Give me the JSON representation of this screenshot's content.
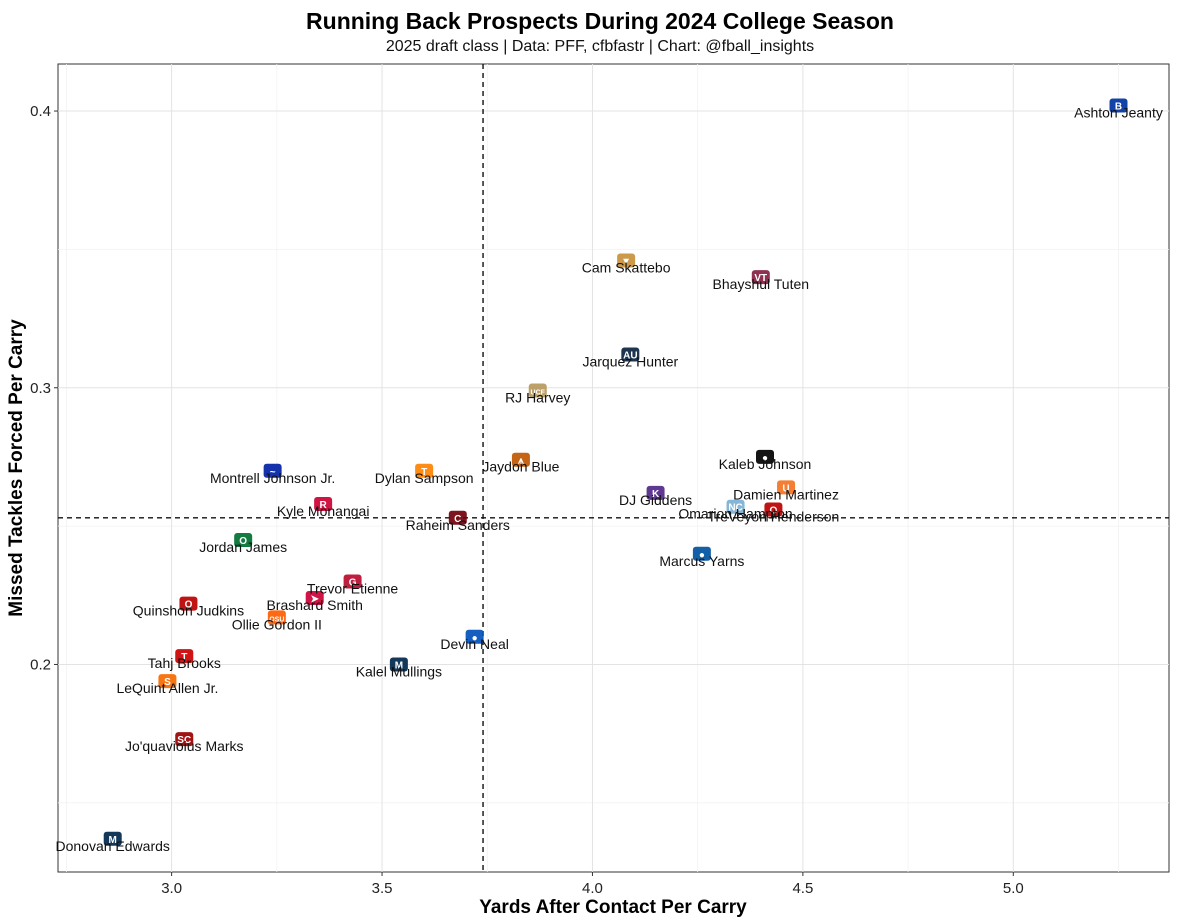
{
  "chart_data": {
    "type": "scatter",
    "title": "Running Back Prospects During 2024 College Season",
    "subtitle": "2025 draft class | Data: PFF, cfbfastr | Chart: @fball_insights",
    "xlabel": "Yards After Contact Per Carry",
    "ylabel": "Missed Tackles Forced Per Carry",
    "xlim": [
      2.73,
      5.37
    ],
    "ylim": [
      0.125,
      0.417
    ],
    "xticks": [
      "3.0",
      "3.5",
      "4.0",
      "4.5",
      "5.0"
    ],
    "yticks": [
      "0.2",
      "0.3",
      "0.4"
    ],
    "grid": true,
    "reference_lines": {
      "x": 3.74,
      "y": 0.253
    },
    "points": [
      {
        "label": "Ashton Jeanty",
        "x": 5.25,
        "y": 0.402,
        "color": "#0033a0",
        "mark": "B"
      },
      {
        "label": "Cam Skattebo",
        "x": 4.08,
        "y": 0.346,
        "color": "#c8913b",
        "mark": "▼"
      },
      {
        "label": "Bhayshul Tuten",
        "x": 4.4,
        "y": 0.34,
        "color": "#861f41",
        "mark": "VT"
      },
      {
        "label": "Jarquez Hunter",
        "x": 4.09,
        "y": 0.312,
        "color": "#0c2340",
        "mark": "AU"
      },
      {
        "label": "RJ Harvey",
        "x": 3.87,
        "y": 0.299,
        "color": "#b7995d",
        "mark": "UCF"
      },
      {
        "label": "Kaleb Johnson",
        "x": 4.41,
        "y": 0.275,
        "color": "#000000",
        "mark": "●"
      },
      {
        "label": "Jaydon Blue",
        "x": 3.83,
        "y": 0.274,
        "color": "#bf5700",
        "mark": "⩚"
      },
      {
        "label": "Montrell Johnson Jr.",
        "x": 3.24,
        "y": 0.27,
        "color": "#0021a5",
        "mark": "~"
      },
      {
        "label": "Dylan Sampson",
        "x": 3.6,
        "y": 0.27,
        "color": "#ff8200",
        "mark": "T"
      },
      {
        "label": "Damien Martinez",
        "x": 4.46,
        "y": 0.264,
        "color": "#f47321",
        "mark": "U"
      },
      {
        "label": "DJ Giddens",
        "x": 4.15,
        "y": 0.262,
        "color": "#512888",
        "mark": "K"
      },
      {
        "label": "Kyle Monangai",
        "x": 3.36,
        "y": 0.258,
        "color": "#cc0033",
        "mark": "R"
      },
      {
        "label": "Omarion Hampton",
        "x": 4.34,
        "y": 0.257,
        "color": "#7bafd4",
        "mark": "NC"
      },
      {
        "label": "TreVeyon Henderson",
        "x": 4.43,
        "y": 0.256,
        "color": "#bb0000",
        "mark": "O"
      },
      {
        "label": "Raheim Sanders",
        "x": 3.68,
        "y": 0.253,
        "color": "#73000a",
        "mark": "C"
      },
      {
        "label": "Jordan James",
        "x": 3.17,
        "y": 0.245,
        "color": "#007030",
        "mark": "O"
      },
      {
        "label": "Marcus Yarns",
        "x": 4.26,
        "y": 0.24,
        "color": "#00539f",
        "mark": "●"
      },
      {
        "label": "Trevor Etienne",
        "x": 3.43,
        "y": 0.23,
        "color": "#ba0c2f",
        "mark": "G"
      },
      {
        "label": "Quinshon Judkins",
        "x": 3.04,
        "y": 0.222,
        "color": "#bb0000",
        "mark": "O"
      },
      {
        "label": "Brashard Smith",
        "x": 3.34,
        "y": 0.224,
        "color": "#cc0035",
        "mark": "➤"
      },
      {
        "label": "Ollie Gordon II",
        "x": 3.25,
        "y": 0.217,
        "color": "#fe5c00",
        "mark": "OSU"
      },
      {
        "label": "Devin Neal",
        "x": 3.72,
        "y": 0.21,
        "color": "#0051ba",
        "mark": "●"
      },
      {
        "label": "Tahj Brooks",
        "x": 3.03,
        "y": 0.203,
        "color": "#cc0000",
        "mark": "T"
      },
      {
        "label": "Kalel Mullings",
        "x": 3.54,
        "y": 0.2,
        "color": "#00274c",
        "mark": "M"
      },
      {
        "label": "LeQuint Allen Jr.",
        "x": 2.99,
        "y": 0.194,
        "color": "#f76900",
        "mark": "S"
      },
      {
        "label": "Jo'quavioius Marks",
        "x": 3.03,
        "y": 0.173,
        "color": "#990000",
        "mark": "SC"
      },
      {
        "label": "Donovan Edwards",
        "x": 2.86,
        "y": 0.137,
        "color": "#00274c",
        "mark": "M"
      }
    ]
  }
}
